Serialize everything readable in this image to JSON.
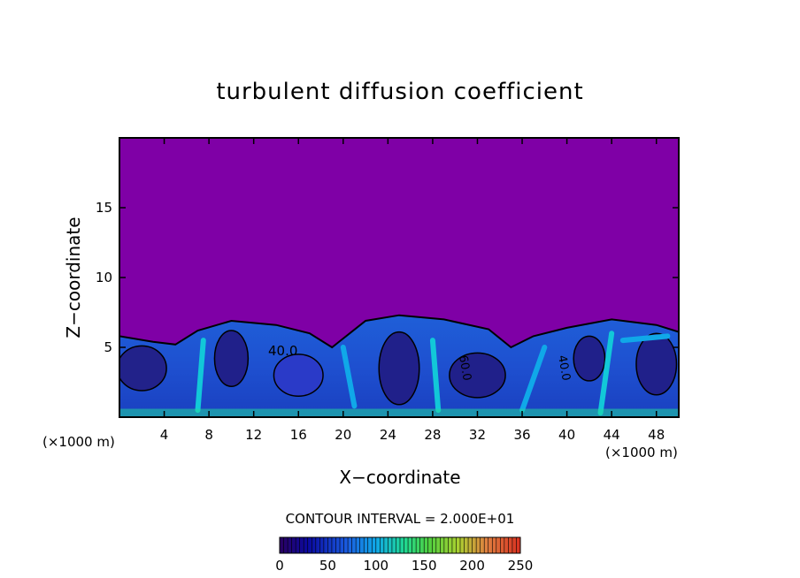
{
  "chart_data": {
    "type": "heatmap",
    "title": "turbulent diffusion coefficient",
    "xlabel": "X−coordinate",
    "ylabel": "Z−coordinate",
    "x_unit_left": "(×1000 m)",
    "x_unit_right": "(×1000 m)",
    "xlim": [
      0,
      50
    ],
    "ylim": [
      0,
      20
    ],
    "x_ticks": [
      "4",
      "8",
      "12",
      "16",
      "20",
      "24",
      "28",
      "32",
      "36",
      "40",
      "44",
      "48"
    ],
    "y_ticks": [
      "5",
      "10",
      "15"
    ],
    "contour_interval_label": "CONTOUR INTERVAL = 2.000E+01",
    "contour_labels": [
      "40.0",
      "60.0",
      "40.0"
    ],
    "colorbar": {
      "min": 0,
      "max": 250,
      "ticks": [
        "0",
        "50",
        "100",
        "150",
        "200",
        "250"
      ]
    },
    "background_value": 0,
    "background_color": "#7f00a6",
    "turbulent_layer_top": [
      {
        "x": 0,
        "z": 5.8
      },
      {
        "x": 3,
        "z": 5.4
      },
      {
        "x": 5,
        "z": 5.2
      },
      {
        "x": 7,
        "z": 6.2
      },
      {
        "x": 10,
        "z": 6.9
      },
      {
        "x": 14,
        "z": 6.6
      },
      {
        "x": 17,
        "z": 6.0
      },
      {
        "x": 19,
        "z": 5.0
      },
      {
        "x": 22,
        "z": 6.9
      },
      {
        "x": 25,
        "z": 7.3
      },
      {
        "x": 29,
        "z": 7.0
      },
      {
        "x": 33,
        "z": 6.3
      },
      {
        "x": 35,
        "z": 5.0
      },
      {
        "x": 37,
        "z": 5.8
      },
      {
        "x": 40,
        "z": 6.4
      },
      {
        "x": 44,
        "z": 7.0
      },
      {
        "x": 48,
        "z": 6.6
      },
      {
        "x": 50,
        "z": 6.1
      }
    ]
  }
}
